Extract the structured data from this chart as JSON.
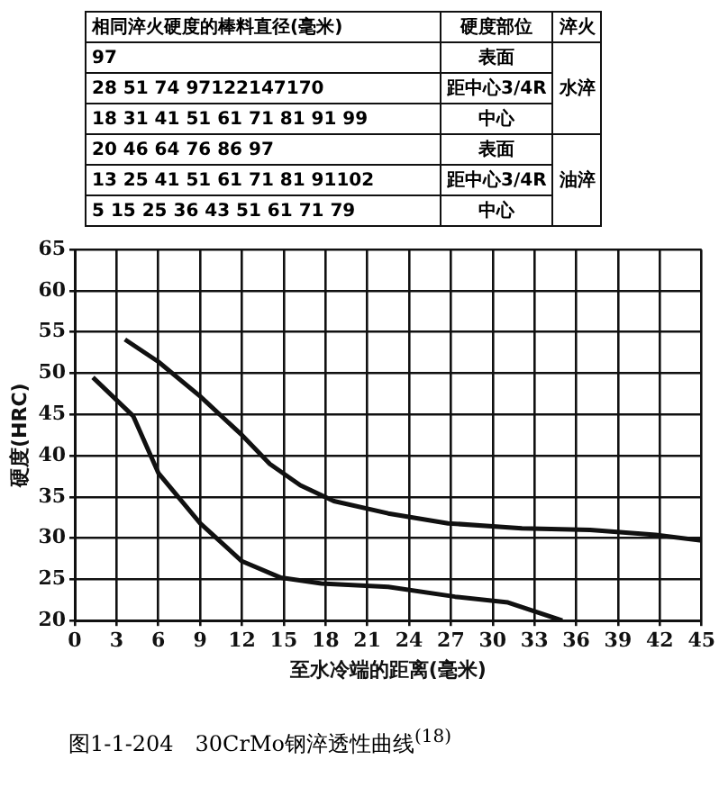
{
  "chart_data": {
    "type": "line",
    "title": "图1-1-204　30CrMo钢淬透性曲线$^{(18)}$",
    "xlabel": "至水冷端的距离(毫米)",
    "ylabel": "硬度(HRC)",
    "xlim": [
      0,
      45
    ],
    "xticks": [
      0,
      3,
      6,
      9,
      12,
      15,
      18,
      21,
      24,
      27,
      30,
      33,
      36,
      39,
      42,
      45
    ],
    "ylim": [
      20,
      65
    ],
    "yticks": [
      20,
      25,
      30,
      35,
      40,
      45,
      50,
      55,
      60,
      65
    ],
    "grid": true,
    "legend": false,
    "marker": "none",
    "line_style": "solid",
    "series": [
      {
        "color": "#111111",
        "x": [
          3.6,
          6,
          9,
          12,
          14,
          16.2,
          18.6,
          22.5,
          26.8,
          32.1,
          37,
          41.7,
          45
        ],
        "values": [
          54.1,
          51.4,
          47.2,
          42.5,
          39,
          36.4,
          34.5,
          33,
          31.8,
          31.2,
          31,
          30.4,
          29.7
        ]
      },
      {
        "color": "#111111",
        "x": [
          1.3,
          4.2,
          6,
          9,
          12,
          14.8,
          17.7,
          22.5,
          27.3,
          31.1,
          35
        ],
        "values": [
          49.5,
          44.8,
          37.9,
          31.8,
          27.2,
          25.2,
          24.5,
          24.1,
          22.9,
          22.2,
          20
        ]
      }
    ],
    "annotations": [
      "相同淬火硬度的棒料直径(毫米)",
      "硬度部位",
      "淬火",
      "97",
      "表面",
      "28  51  74  97122147170",
      "距中心3/4R",
      "18  31  41  51  61  71  81  91  99",
      "中心",
      "水淬",
      "20  46  64  76  86  97",
      "表面",
      "13  25  41  51  61  71  81  91102",
      "距中心3/4R",
      "5  15  25  36  43  51  61  71  79",
      "中心",
      "油淬"
    ]
  }
}
